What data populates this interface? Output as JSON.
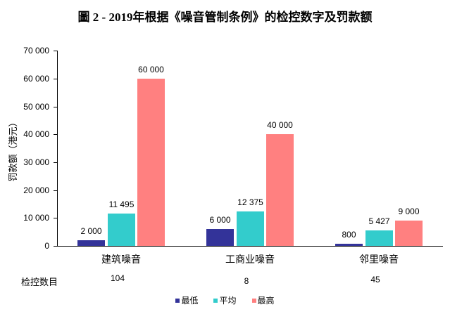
{
  "chart_data": {
    "type": "bar",
    "title": "圖 2 - 2019年根据《噪音管制条例》的检控数字及罚款额",
    "xlabel": "",
    "ylabel": "罚款额（港元）",
    "ylim": [
      0,
      70000
    ],
    "yticks": [
      "0",
      "10 000",
      "20 000",
      "30 000",
      "40 000",
      "50 000",
      "60 000",
      "70 000"
    ],
    "grid": false,
    "legend_position": "bottom",
    "categories": [
      "建筑噪音",
      "工商业噪音",
      "邻里噪音"
    ],
    "series": [
      {
        "name": "最低",
        "color": "#333399",
        "values": [
          2000,
          6000,
          800
        ],
        "labels": [
          "2 000",
          "6 000",
          "800"
        ]
      },
      {
        "name": "平均",
        "color": "#33CCCC",
        "values": [
          11495,
          12375,
          5427
        ],
        "labels": [
          "11 495",
          "12 375",
          "5 427"
        ]
      },
      {
        "name": "最高",
        "color": "#FF8080",
        "values": [
          60000,
          40000,
          9000
        ],
        "labels": [
          "60 000",
          "40 000",
          "9 000"
        ]
      }
    ],
    "table": {
      "header": "检控数目",
      "values": [
        "104",
        "8",
        "45"
      ]
    }
  }
}
